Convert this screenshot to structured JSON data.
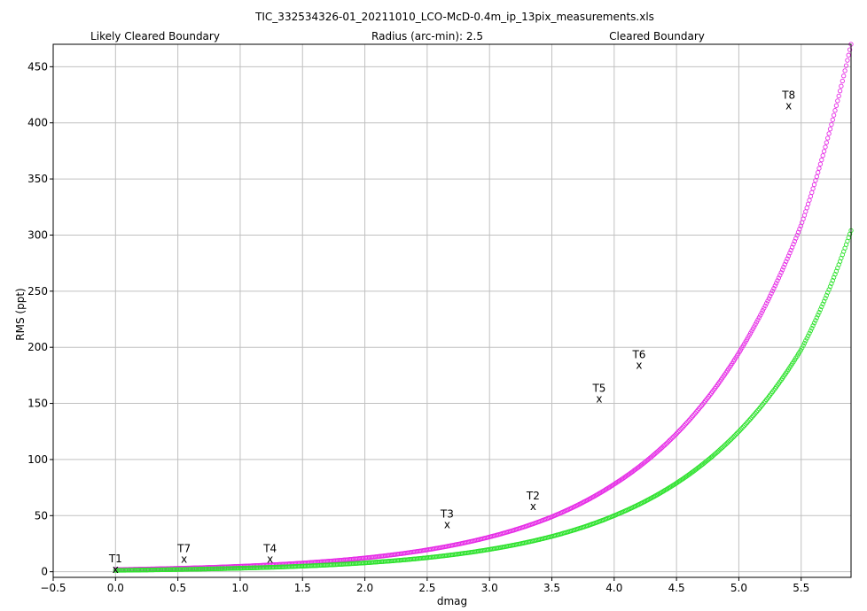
{
  "chart_data": {
    "type": "scatter",
    "title": "TIC_332534326-01_20211010_LCO-McD-0.4m_ip_13pix_measurements.xls",
    "subtitle": "Radius (arc-min): 2.5",
    "xlabel": "dmag",
    "ylabel": "RMS (ppt)",
    "xlim": [
      -0.5,
      5.9
    ],
    "ylim": [
      -5,
      470
    ],
    "x_ticks": [
      -0.5,
      0.0,
      0.5,
      1.0,
      1.5,
      2.0,
      2.5,
      3.0,
      3.5,
      4.0,
      4.5,
      5.0,
      5.5
    ],
    "x_tick_labels": [
      "−0.5",
      "0.0",
      "0.5",
      "1.0",
      "1.5",
      "2.0",
      "2.5",
      "3.0",
      "3.5",
      "4.0",
      "4.5",
      "5.0",
      "5.5"
    ],
    "y_ticks": [
      0,
      50,
      100,
      150,
      200,
      250,
      300,
      350,
      400,
      450
    ],
    "grid": true,
    "legend_position": "top",
    "series": [
      {
        "name": "Likely Cleared Boundary",
        "color": "#e62ce6",
        "marker": "circle-open",
        "x_range": [
          0.0,
          5.9
        ],
        "curve_points": [
          [
            0.0,
            1.95
          ],
          [
            1.0,
            4.9
          ],
          [
            2.0,
            12.3
          ],
          [
            3.0,
            31.0
          ],
          [
            3.5,
            49.0
          ],
          [
            4.0,
            78.0
          ],
          [
            4.5,
            123.0
          ],
          [
            5.0,
            195.0
          ],
          [
            5.5,
            309.0
          ],
          [
            5.9,
            470.0
          ]
        ]
      },
      {
        "name": "Cleared Boundary",
        "color": "#2ee22e",
        "marker": "circle-open",
        "x_range": [
          0.0,
          5.9
        ],
        "curve_points": [
          [
            0.0,
            1.25
          ],
          [
            1.0,
            3.15
          ],
          [
            2.0,
            7.9
          ],
          [
            3.0,
            19.9
          ],
          [
            3.5,
            31.5
          ],
          [
            4.0,
            50.0
          ],
          [
            4.5,
            79.0
          ],
          [
            5.0,
            125.0
          ],
          [
            5.5,
            198.0
          ],
          [
            5.9,
            304.0
          ]
        ]
      }
    ],
    "targets": [
      {
        "label": "T1",
        "x": 0.0,
        "y": 2
      },
      {
        "label": "T7",
        "x": 0.55,
        "y": 11
      },
      {
        "label": "T4",
        "x": 1.24,
        "y": 11
      },
      {
        "label": "T3",
        "x": 2.66,
        "y": 42
      },
      {
        "label": "T2",
        "x": 3.35,
        "y": 58
      },
      {
        "label": "T5",
        "x": 3.88,
        "y": 154
      },
      {
        "label": "T6",
        "x": 4.2,
        "y": 184
      },
      {
        "label": "T8",
        "x": 5.4,
        "y": 415
      }
    ],
    "target_marker": "x"
  }
}
